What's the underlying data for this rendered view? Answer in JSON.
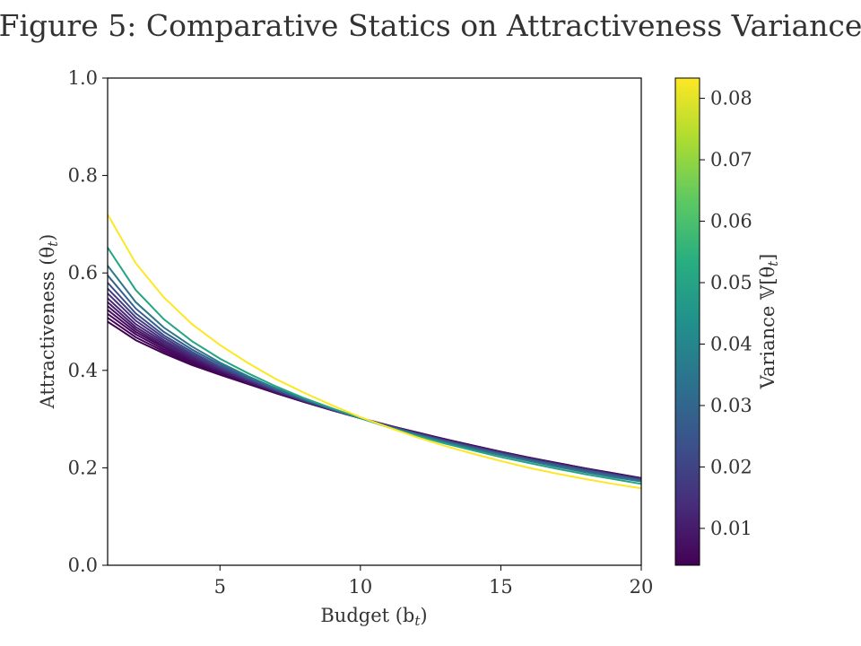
{
  "chart_data": {
    "type": "line",
    "title": "Figure 5: Comparative Statics on Attractiveness Variance",
    "xlabel": "Budget (b",
    "xlabel_sub": "t",
    "xlabel_close": ")",
    "ylabel": "Attractiveness (θ",
    "ylabel_sub": "t",
    "ylabel_close": ")",
    "xlim": [
      1,
      20
    ],
    "ylim": [
      0.0,
      1.0
    ],
    "xticks": [
      5,
      10,
      15,
      20
    ],
    "xtick_labels": [
      "5",
      "10",
      "15",
      "20"
    ],
    "yticks": [
      0.0,
      0.2,
      0.4,
      0.6,
      0.8,
      1.0
    ],
    "ytick_labels": [
      "0.0",
      "0.2",
      "0.4",
      "0.6",
      "0.8",
      "1.0"
    ],
    "grid": false,
    "colorbar": {
      "label": "Variance 𝕍[θ",
      "label_sub": "t",
      "label_close": "]",
      "colormap": "viridis",
      "range": [
        0.004,
        0.0833
      ],
      "ticks": [
        0.01,
        0.02,
        0.03,
        0.04,
        0.05,
        0.06,
        0.07,
        0.08
      ],
      "tick_labels": [
        "0.01",
        "0.02",
        "0.03",
        "0.04",
        "0.05",
        "0.06",
        "0.07",
        "0.08"
      ]
    },
    "x": [
      1,
      2,
      3,
      4,
      5,
      6,
      7,
      8,
      9,
      10,
      11,
      12,
      13,
      14,
      15,
      16,
      17,
      18,
      19,
      20
    ],
    "series": [
      {
        "variance": 0.0833,
        "values": [
          0.72,
          0.62,
          0.55,
          0.495,
          0.452,
          0.415,
          0.382,
          0.354,
          0.328,
          0.304,
          0.283,
          0.263,
          0.245,
          0.229,
          0.214,
          0.2,
          0.188,
          0.177,
          0.167,
          0.158
        ]
      },
      {
        "variance": 0.05,
        "values": [
          0.652,
          0.565,
          0.505,
          0.46,
          0.424,
          0.394,
          0.367,
          0.343,
          0.322,
          0.302,
          0.283,
          0.266,
          0.25,
          0.236,
          0.222,
          0.21,
          0.198,
          0.187,
          0.177,
          0.167
        ]
      },
      {
        "variance": 0.035,
        "values": [
          0.615,
          0.54,
          0.488,
          0.449,
          0.416,
          0.388,
          0.363,
          0.341,
          0.321,
          0.302,
          0.284,
          0.268,
          0.253,
          0.239,
          0.226,
          0.214,
          0.202,
          0.191,
          0.181,
          0.172
        ]
      },
      {
        "variance": 0.028,
        "values": [
          0.595,
          0.527,
          0.479,
          0.443,
          0.412,
          0.385,
          0.361,
          0.34,
          0.32,
          0.302,
          0.285,
          0.269,
          0.254,
          0.241,
          0.228,
          0.216,
          0.205,
          0.194,
          0.184,
          0.174
        ]
      },
      {
        "variance": 0.022,
        "values": [
          0.58,
          0.517,
          0.472,
          0.438,
          0.408,
          0.383,
          0.36,
          0.339,
          0.32,
          0.302,
          0.285,
          0.27,
          0.255,
          0.242,
          0.229,
          0.217,
          0.206,
          0.195,
          0.185,
          0.175
        ]
      },
      {
        "variance": 0.018,
        "values": [
          0.568,
          0.509,
          0.467,
          0.434,
          0.406,
          0.381,
          0.359,
          0.338,
          0.319,
          0.302,
          0.286,
          0.27,
          0.256,
          0.243,
          0.23,
          0.218,
          0.207,
          0.196,
          0.186,
          0.176
        ]
      },
      {
        "variance": 0.015,
        "values": [
          0.558,
          0.502,
          0.462,
          0.431,
          0.404,
          0.38,
          0.358,
          0.338,
          0.319,
          0.302,
          0.286,
          0.271,
          0.257,
          0.243,
          0.231,
          0.219,
          0.207,
          0.197,
          0.186,
          0.177
        ]
      },
      {
        "variance": 0.012,
        "values": [
          0.548,
          0.495,
          0.458,
          0.428,
          0.402,
          0.379,
          0.357,
          0.337,
          0.319,
          0.302,
          0.286,
          0.271,
          0.257,
          0.244,
          0.231,
          0.219,
          0.208,
          0.197,
          0.187,
          0.177
        ]
      },
      {
        "variance": 0.01,
        "values": [
          0.54,
          0.489,
          0.454,
          0.425,
          0.4,
          0.377,
          0.356,
          0.337,
          0.319,
          0.302,
          0.286,
          0.271,
          0.257,
          0.244,
          0.232,
          0.22,
          0.208,
          0.198,
          0.187,
          0.178
        ]
      },
      {
        "variance": 0.008,
        "values": [
          0.532,
          0.484,
          0.45,
          0.422,
          0.398,
          0.376,
          0.355,
          0.336,
          0.318,
          0.302,
          0.286,
          0.272,
          0.258,
          0.245,
          0.232,
          0.22,
          0.209,
          0.198,
          0.188,
          0.178
        ]
      },
      {
        "variance": 0.0065,
        "values": [
          0.524,
          0.479,
          0.447,
          0.42,
          0.397,
          0.375,
          0.355,
          0.336,
          0.318,
          0.302,
          0.287,
          0.272,
          0.258,
          0.245,
          0.232,
          0.22,
          0.209,
          0.198,
          0.188,
          0.178
        ]
      },
      {
        "variance": 0.0055,
        "values": [
          0.516,
          0.474,
          0.443,
          0.417,
          0.395,
          0.374,
          0.354,
          0.335,
          0.318,
          0.302,
          0.287,
          0.272,
          0.258,
          0.245,
          0.233,
          0.221,
          0.209,
          0.199,
          0.188,
          0.178
        ]
      },
      {
        "variance": 0.0047,
        "values": [
          0.508,
          0.468,
          0.439,
          0.414,
          0.393,
          0.373,
          0.353,
          0.335,
          0.318,
          0.302,
          0.287,
          0.272,
          0.259,
          0.246,
          0.233,
          0.221,
          0.21,
          0.199,
          0.189,
          0.179
        ]
      },
      {
        "variance": 0.004,
        "values": [
          0.5,
          0.462,
          0.435,
          0.411,
          0.391,
          0.372,
          0.353,
          0.335,
          0.318,
          0.302,
          0.287,
          0.273,
          0.259,
          0.246,
          0.233,
          0.221,
          0.21,
          0.199,
          0.189,
          0.179
        ]
      }
    ]
  }
}
